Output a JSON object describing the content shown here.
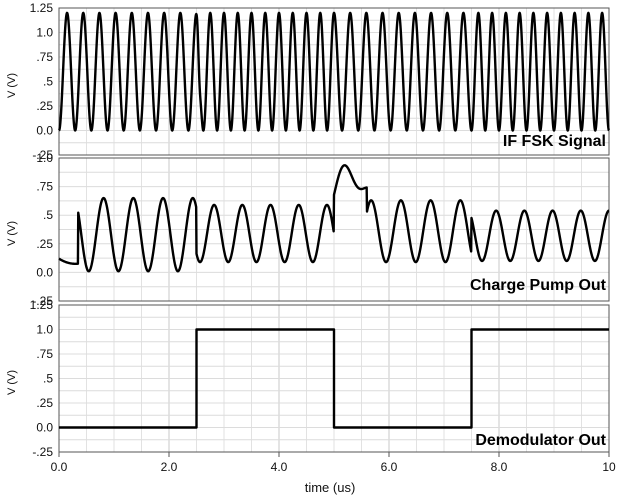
{
  "chart_data": [
    {
      "type": "line",
      "title": "IF FSK Signal",
      "ylabel": "V (V)",
      "yticks": [
        "1.25",
        "1.0",
        ".75",
        ".5",
        ".25",
        "0.0",
        "-.25"
      ],
      "ylim": [
        -0.25,
        1.25
      ],
      "xlim": [
        0,
        10
      ],
      "series": [
        {
          "name": "IF FSK Signal",
          "description_values": {
            "amplitude_range": [
              0.0,
              1.2
            ],
            "frequency_MHz_segments": [
              {
                "t": [
                  0,
                  2.5
                ],
                "f": 3.4
              },
              {
                "t": [
                  2.5,
                  5.0
                ],
                "f": 4.0
              },
              {
                "t": [
                  5.0,
                  7.5
                ],
                "f": 3.4
              },
              {
                "t": [
                  7.5,
                  10.0
                ],
                "f": 4.0
              }
            ],
            "glitches_us": [
              2.52,
              5.0
            ]
          }
        }
      ]
    },
    {
      "type": "line",
      "title": "Charge Pump Out",
      "ylabel": "V (V)",
      "yticks": [
        "1.0",
        ".75",
        ".5",
        ".25",
        "0.0",
        "-.25"
      ],
      "ylim": [
        -0.25,
        1.0
      ],
      "xlim": [
        0,
        10
      ],
      "series": [
        {
          "name": "Charge Pump Out",
          "description_values": {
            "min": 0.0,
            "max": 0.95,
            "peak_time_us": 5.3
          }
        }
      ]
    },
    {
      "type": "line",
      "title": "Demodulator Out",
      "ylabel": "V (V)",
      "yticks": [
        "1.25",
        "1.0",
        ".75",
        ".5",
        ".25",
        "0.0",
        "-.25"
      ],
      "ylim": [
        -0.25,
        1.25
      ],
      "xlim": [
        0,
        10
      ],
      "xticks": [
        "0.0",
        "2.0",
        "4.0",
        "6.0",
        "8.0",
        "10"
      ],
      "xlabel": "time (us)",
      "series": [
        {
          "name": "Demodulator Out",
          "x": [
            0,
            2.5,
            2.5,
            5.0,
            5.0,
            7.5,
            7.5,
            10
          ],
          "y": [
            0,
            0,
            1,
            1,
            0,
            0,
            1,
            1
          ]
        }
      ]
    }
  ],
  "labels": {
    "panel1": "IF FSK Signal",
    "panel2": "Charge Pump Out",
    "panel3": "Demodulator Out",
    "xlabel": "time (us)"
  }
}
